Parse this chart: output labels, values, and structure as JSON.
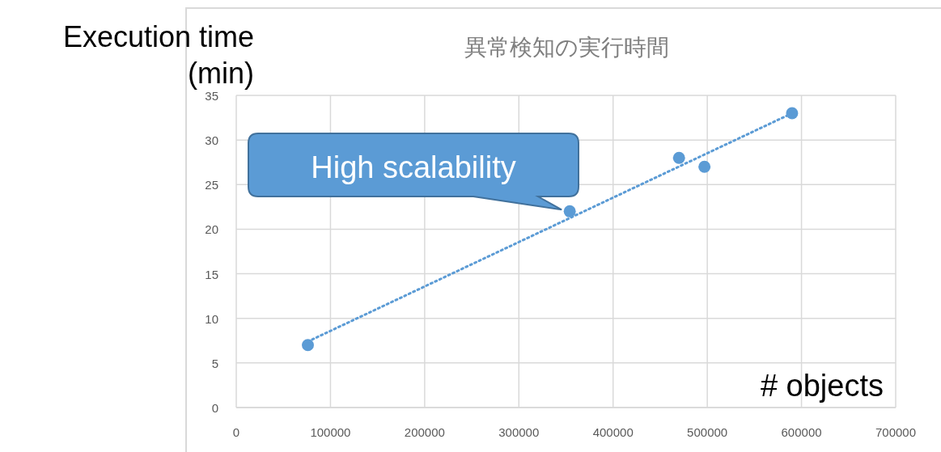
{
  "chart_data": {
    "type": "scatter",
    "title": "異常検知の実行時間",
    "xlabel": "# objects",
    "ylabel": "Execution time (min)",
    "annotations": [
      {
        "text": "High scalability",
        "x": 354000,
        "y": 22
      }
    ],
    "series": [
      {
        "type": "scatter",
        "color": "#5b9bd5",
        "marker": "circle",
        "x": [
          76000,
          354000,
          470000,
          497000,
          590000
        ],
        "values": [
          7,
          22,
          28,
          27,
          33
        ]
      },
      {
        "type": "line",
        "color": "#5b9bd5",
        "line_style": "dotted",
        "marker": "none",
        "x": [
          76000,
          590000
        ],
        "values": [
          7.4,
          33
        ]
      }
    ],
    "xlim": [
      0,
      700000
    ],
    "ylim": [
      0,
      35
    ],
    "xticks": [
      0,
      100000,
      200000,
      300000,
      400000,
      500000,
      600000,
      700000
    ],
    "yticks": [
      0,
      5,
      10,
      15,
      20,
      25,
      30,
      35
    ],
    "grid": true
  }
}
